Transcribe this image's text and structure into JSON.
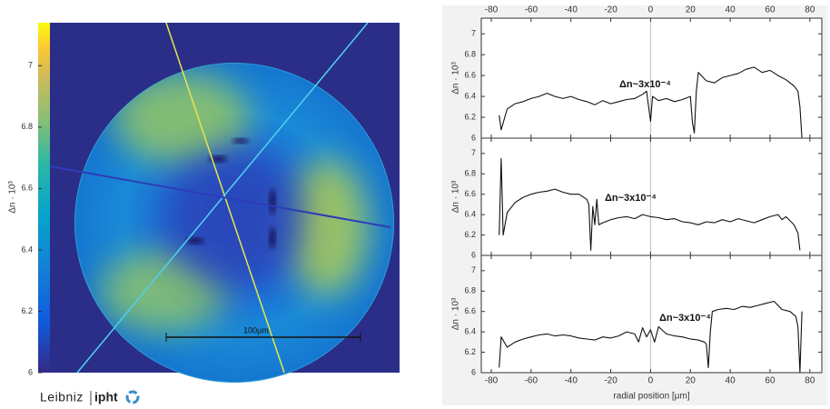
{
  "chart_data": [
    {
      "type": "image",
      "colorbar_label": "Δn · 10³",
      "clim": [
        6,
        7.14
      ],
      "cticks": [
        6,
        6.2,
        6.4,
        6.6,
        6.8,
        7
      ],
      "scale_bar": "100μm"
    },
    {
      "type": "line",
      "ylabel": "Δn · 10³",
      "annotation": "Δn~3x10⁻⁴",
      "xlim": [
        -85,
        86
      ],
      "ylim": [
        6,
        7.15
      ],
      "xticks": [
        -80,
        -60,
        -40,
        -20,
        0,
        20,
        40,
        60,
        80
      ],
      "yticks": [
        6,
        6.2,
        6.4,
        6.6,
        6.8,
        7
      ],
      "xtick_labels": "top",
      "vline": 0,
      "color": "#111111",
      "x": [
        -76,
        -75,
        -72,
        -68,
        -64,
        -60,
        -56,
        -52,
        -48,
        -44,
        -40,
        -36,
        -32,
        -28,
        -24,
        -20,
        -16,
        -12,
        -8,
        -4,
        -2,
        0,
        1,
        4,
        8,
        12,
        16,
        20,
        21,
        22,
        23,
        24,
        28,
        32,
        36,
        40,
        44,
        48,
        52,
        56,
        60,
        64,
        68,
        72,
        74,
        75,
        76
      ],
      "values": [
        6.22,
        6.08,
        6.28,
        6.33,
        6.35,
        6.38,
        6.4,
        6.43,
        6.4,
        6.38,
        6.4,
        6.37,
        6.35,
        6.32,
        6.36,
        6.33,
        6.35,
        6.37,
        6.38,
        6.42,
        6.45,
        6.16,
        6.4,
        6.36,
        6.38,
        6.35,
        6.37,
        6.4,
        6.15,
        6.05,
        6.45,
        6.63,
        6.55,
        6.53,
        6.58,
        6.6,
        6.62,
        6.66,
        6.68,
        6.63,
        6.65,
        6.6,
        6.56,
        6.5,
        6.45,
        6.3,
        6.0
      ]
    },
    {
      "type": "line",
      "ylabel": "Δn · 10³",
      "annotation": "Δn~3x10⁻⁴",
      "xlim": [
        -85,
        86
      ],
      "ylim": [
        6,
        7.15
      ],
      "xticks": [
        -80,
        -60,
        -40,
        -20,
        0,
        20,
        40,
        60,
        80
      ],
      "yticks": [
        6,
        6.2,
        6.4,
        6.6,
        6.8,
        7
      ],
      "xtick_labels": "none",
      "vline": 0,
      "color": "#111111",
      "x": [
        -76,
        -75,
        -74,
        -72,
        -68,
        -64,
        -60,
        -56,
        -52,
        -48,
        -44,
        -40,
        -36,
        -32,
        -31,
        -30,
        -29,
        -28,
        -27,
        -26,
        -24,
        -20,
        -16,
        -12,
        -8,
        -4,
        0,
        4,
        8,
        12,
        16,
        20,
        24,
        28,
        32,
        36,
        40,
        44,
        48,
        52,
        56,
        60,
        64,
        66,
        68,
        72,
        74,
        75
      ],
      "values": [
        6.2,
        6.95,
        6.2,
        6.42,
        6.52,
        6.57,
        6.6,
        6.62,
        6.63,
        6.65,
        6.62,
        6.6,
        6.6,
        6.55,
        6.5,
        6.05,
        6.48,
        6.3,
        6.55,
        6.3,
        6.32,
        6.35,
        6.37,
        6.38,
        6.36,
        6.4,
        6.38,
        6.37,
        6.35,
        6.36,
        6.33,
        6.32,
        6.3,
        6.33,
        6.32,
        6.35,
        6.33,
        6.36,
        6.34,
        6.32,
        6.35,
        6.38,
        6.4,
        6.35,
        6.38,
        6.3,
        6.22,
        6.05
      ]
    },
    {
      "type": "line",
      "ylabel": "Δn · 10³",
      "xlabel": "radial position [μm]",
      "annotation": "Δn~3x10⁻⁴",
      "xlim": [
        -85,
        86
      ],
      "ylim": [
        6,
        7.15
      ],
      "xticks": [
        -80,
        -60,
        -40,
        -20,
        0,
        20,
        40,
        60,
        80
      ],
      "yticks": [
        6,
        6.2,
        6.4,
        6.6,
        6.8,
        7
      ],
      "xtick_labels": "bottom",
      "vline": 0,
      "color": "#111111",
      "x": [
        -76,
        -75,
        -72,
        -68,
        -64,
        -60,
        -56,
        -52,
        -48,
        -44,
        -40,
        -36,
        -32,
        -28,
        -24,
        -20,
        -16,
        -12,
        -8,
        -6,
        -4,
        -2,
        0,
        2,
        4,
        8,
        12,
        16,
        20,
        24,
        27,
        28,
        29,
        30,
        31,
        34,
        38,
        42,
        46,
        50,
        54,
        58,
        62,
        66,
        70,
        73,
        74,
        75,
        76
      ],
      "values": [
        6.05,
        6.35,
        6.25,
        6.3,
        6.33,
        6.35,
        6.37,
        6.38,
        6.36,
        6.37,
        6.36,
        6.34,
        6.33,
        6.32,
        6.35,
        6.34,
        6.36,
        6.4,
        6.38,
        6.3,
        6.44,
        6.35,
        6.42,
        6.3,
        6.45,
        6.38,
        6.36,
        6.35,
        6.33,
        6.32,
        6.3,
        6.28,
        6.05,
        6.4,
        6.6,
        6.62,
        6.63,
        6.62,
        6.65,
        6.64,
        6.66,
        6.68,
        6.7,
        6.62,
        6.6,
        6.55,
        6.45,
        6.0,
        6.6
      ]
    }
  ],
  "logo": {
    "name": "Leibniz",
    "institute": "ipht"
  }
}
